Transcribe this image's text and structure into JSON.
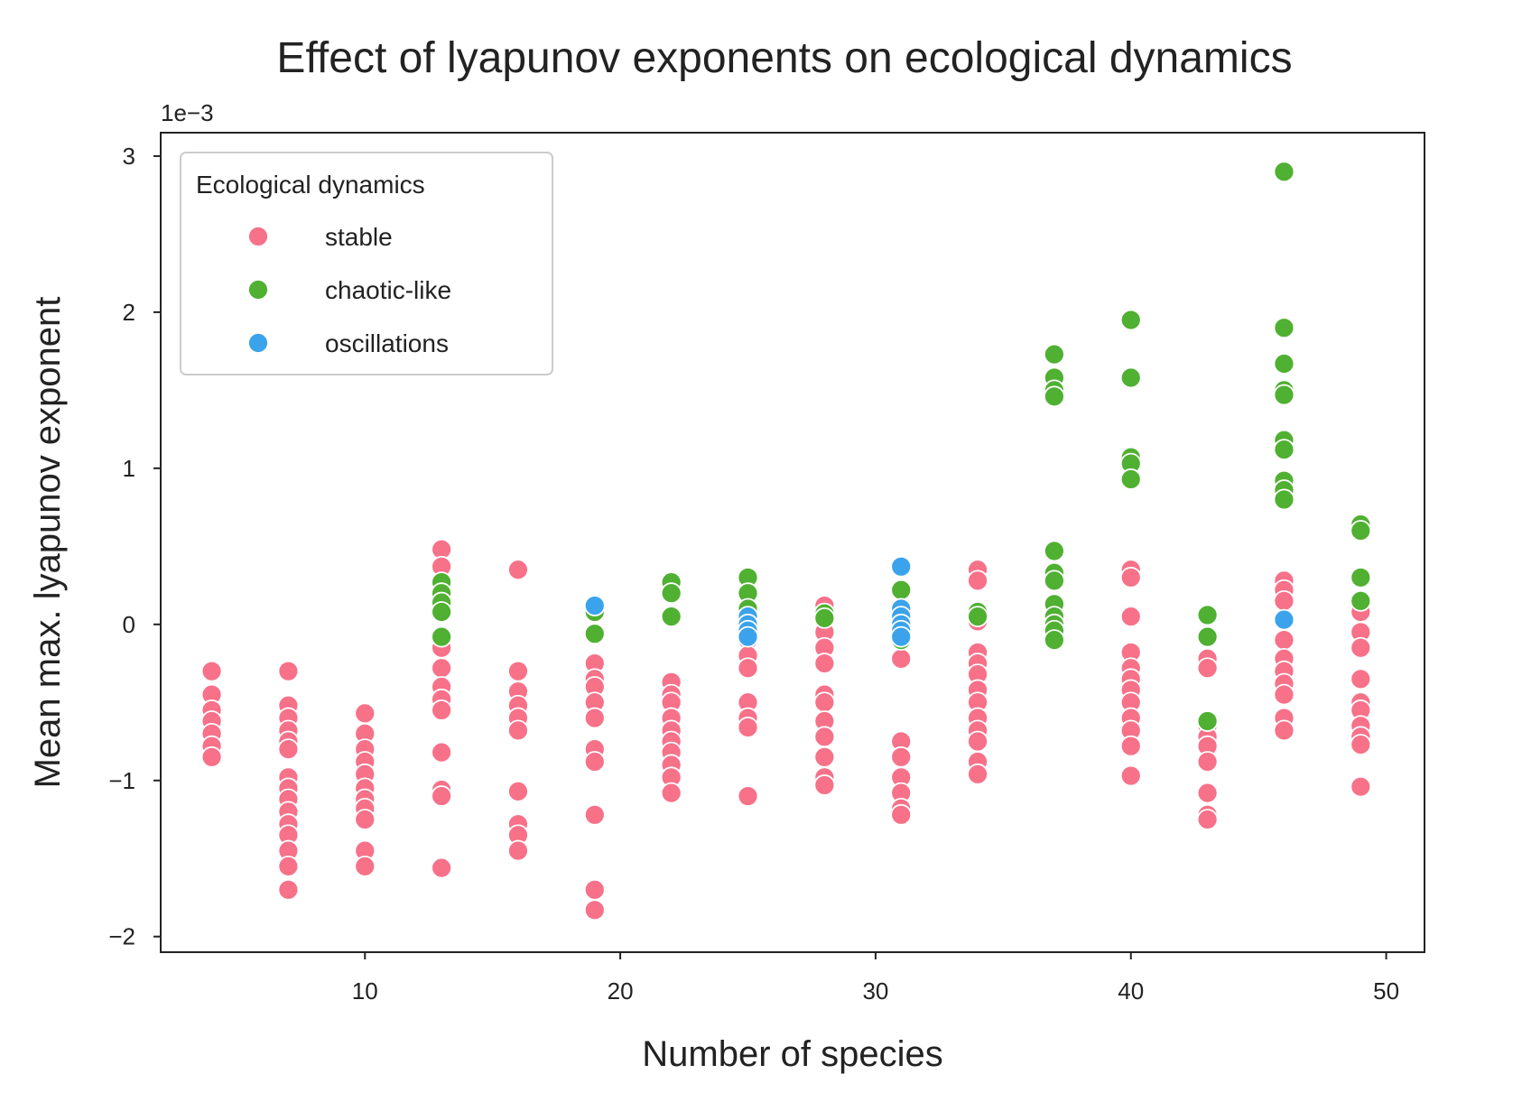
{
  "chart_data": {
    "type": "scatter",
    "title": "Effect of lyapunov exponents on ecological dynamics",
    "xlabel": "Number of species",
    "ylabel": "Mean max. lyapunov exponent",
    "y_offset_label": "1e−3",
    "xlim": [
      2,
      51.5
    ],
    "ylim": [
      -2.1,
      3.15
    ],
    "xticks": [
      10,
      20,
      30,
      40,
      50
    ],
    "yticks": [
      -2,
      -1,
      0,
      1,
      2,
      3
    ],
    "ytick_labels": [
      "−2",
      "−1",
      "0",
      "1",
      "2",
      "3"
    ],
    "grid": false,
    "legend": {
      "title": "Ecological dynamics",
      "placement": "top-left"
    },
    "series": [
      {
        "name": "stable",
        "color": "#f77189",
        "points": [
          [
            4,
            -0.3
          ],
          [
            4,
            -0.45
          ],
          [
            4,
            -0.55
          ],
          [
            4,
            -0.62
          ],
          [
            4,
            -0.7
          ],
          [
            4,
            -0.78
          ],
          [
            4,
            -0.85
          ],
          [
            7,
            -0.3
          ],
          [
            7,
            -0.52
          ],
          [
            7,
            -0.6
          ],
          [
            7,
            -0.68
          ],
          [
            7,
            -0.75
          ],
          [
            7,
            -0.8
          ],
          [
            7,
            -0.98
          ],
          [
            7,
            -1.05
          ],
          [
            7,
            -1.12
          ],
          [
            7,
            -1.2
          ],
          [
            7,
            -1.28
          ],
          [
            7,
            -1.35
          ],
          [
            7,
            -1.45
          ],
          [
            7,
            -1.55
          ],
          [
            7,
            -1.7
          ],
          [
            10,
            -0.57
          ],
          [
            10,
            -0.7
          ],
          [
            10,
            -0.8
          ],
          [
            10,
            -0.88
          ],
          [
            10,
            -0.96
          ],
          [
            10,
            -1.05
          ],
          [
            10,
            -1.12
          ],
          [
            10,
            -1.18
          ],
          [
            10,
            -1.25
          ],
          [
            10,
            -1.45
          ],
          [
            10,
            -1.55
          ],
          [
            13,
            0.48
          ],
          [
            13,
            0.37
          ],
          [
            13,
            -0.15
          ],
          [
            13,
            -0.28
          ],
          [
            13,
            -0.4
          ],
          [
            13,
            -0.48
          ],
          [
            13,
            -0.55
          ],
          [
            13,
            -0.82
          ],
          [
            13,
            -1.06
          ],
          [
            13,
            -1.1
          ],
          [
            13,
            -1.56
          ],
          [
            16,
            0.35
          ],
          [
            16,
            -0.3
          ],
          [
            16,
            -0.43
          ],
          [
            16,
            -0.52
          ],
          [
            16,
            -0.6
          ],
          [
            16,
            -0.68
          ],
          [
            16,
            -1.07
          ],
          [
            16,
            -1.28
          ],
          [
            16,
            -1.35
          ],
          [
            16,
            -1.45
          ],
          [
            19,
            -0.25
          ],
          [
            19,
            -0.35
          ],
          [
            19,
            -0.4
          ],
          [
            19,
            -0.5
          ],
          [
            19,
            -0.6
          ],
          [
            19,
            -0.8
          ],
          [
            19,
            -0.88
          ],
          [
            19,
            -1.22
          ],
          [
            19,
            -1.7
          ],
          [
            19,
            -1.83
          ],
          [
            22,
            -0.37
          ],
          [
            22,
            -0.45
          ],
          [
            22,
            -0.5
          ],
          [
            22,
            -0.6
          ],
          [
            22,
            -0.68
          ],
          [
            22,
            -0.75
          ],
          [
            22,
            -0.82
          ],
          [
            22,
            -0.9
          ],
          [
            22,
            -0.98
          ],
          [
            22,
            -1.08
          ],
          [
            25,
            -0.1
          ],
          [
            25,
            -0.2
          ],
          [
            25,
            -0.28
          ],
          [
            25,
            -0.5
          ],
          [
            25,
            -0.6
          ],
          [
            25,
            -0.66
          ],
          [
            25,
            -1.1
          ],
          [
            28,
            0.12
          ],
          [
            28,
            -0.05
          ],
          [
            28,
            -0.15
          ],
          [
            28,
            -0.25
          ],
          [
            28,
            -0.45
          ],
          [
            28,
            -0.5
          ],
          [
            28,
            -0.62
          ],
          [
            28,
            -0.72
          ],
          [
            28,
            -0.85
          ],
          [
            28,
            -0.98
          ],
          [
            28,
            -1.03
          ],
          [
            31,
            -0.22
          ],
          [
            31,
            -0.75
          ],
          [
            31,
            -0.85
          ],
          [
            31,
            -0.98
          ],
          [
            31,
            -1.08
          ],
          [
            31,
            -1.18
          ],
          [
            31,
            -1.22
          ],
          [
            34,
            0.35
          ],
          [
            34,
            0.28
          ],
          [
            34,
            0.02
          ],
          [
            34,
            -0.18
          ],
          [
            34,
            -0.25
          ],
          [
            34,
            -0.32
          ],
          [
            34,
            -0.42
          ],
          [
            34,
            -0.5
          ],
          [
            34,
            -0.6
          ],
          [
            34,
            -0.68
          ],
          [
            34,
            -0.75
          ],
          [
            34,
            -0.88
          ],
          [
            34,
            -0.96
          ],
          [
            40,
            0.35
          ],
          [
            40,
            0.3
          ],
          [
            40,
            0.05
          ],
          [
            40,
            -0.18
          ],
          [
            40,
            -0.28
          ],
          [
            40,
            -0.35
          ],
          [
            40,
            -0.42
          ],
          [
            40,
            -0.5
          ],
          [
            40,
            -0.6
          ],
          [
            40,
            -0.68
          ],
          [
            40,
            -0.78
          ],
          [
            40,
            -0.97
          ],
          [
            43,
            -0.22
          ],
          [
            43,
            -0.28
          ],
          [
            43,
            -0.65
          ],
          [
            43,
            -0.72
          ],
          [
            43,
            -0.78
          ],
          [
            43,
            -0.88
          ],
          [
            43,
            -1.08
          ],
          [
            43,
            -1.22
          ],
          [
            43,
            -1.25
          ],
          [
            46,
            0.28
          ],
          [
            46,
            0.22
          ],
          [
            46,
            0.15
          ],
          [
            46,
            -0.1
          ],
          [
            46,
            -0.22
          ],
          [
            46,
            -0.3
          ],
          [
            46,
            -0.38
          ],
          [
            46,
            -0.45
          ],
          [
            46,
            -0.6
          ],
          [
            46,
            -0.68
          ],
          [
            49,
            0.65
          ],
          [
            49,
            0.08
          ],
          [
            49,
            -0.05
          ],
          [
            49,
            -0.15
          ],
          [
            49,
            -0.35
          ],
          [
            49,
            -0.5
          ],
          [
            49,
            -0.55
          ],
          [
            49,
            -0.65
          ],
          [
            49,
            -0.72
          ],
          [
            49,
            -0.77
          ],
          [
            49,
            -1.04
          ]
        ]
      },
      {
        "name": "chaotic-like",
        "color": "#4fb031",
        "points": [
          [
            13,
            0.27
          ],
          [
            13,
            0.2
          ],
          [
            13,
            0.14
          ],
          [
            13,
            0.08
          ],
          [
            13,
            -0.08
          ],
          [
            19,
            0.08
          ],
          [
            19,
            -0.06
          ],
          [
            22,
            0.27
          ],
          [
            22,
            0.2
          ],
          [
            22,
            0.05
          ],
          [
            25,
            0.3
          ],
          [
            25,
            0.2
          ],
          [
            25,
            0.1
          ],
          [
            28,
            0.07
          ],
          [
            28,
            0.04
          ],
          [
            31,
            0.22
          ],
          [
            31,
            0.1
          ],
          [
            31,
            -0.1
          ],
          [
            34,
            0.08
          ],
          [
            34,
            0.05
          ],
          [
            37,
            1.73
          ],
          [
            37,
            1.58
          ],
          [
            37,
            1.5
          ],
          [
            37,
            1.46
          ],
          [
            37,
            0.47
          ],
          [
            37,
            0.33
          ],
          [
            37,
            0.28
          ],
          [
            37,
            0.13
          ],
          [
            37,
            0.05
          ],
          [
            37,
            0.0
          ],
          [
            37,
            -0.04
          ],
          [
            37,
            -0.1
          ],
          [
            40,
            1.95
          ],
          [
            40,
            1.58
          ],
          [
            40,
            1.07
          ],
          [
            40,
            1.03
          ],
          [
            40,
            0.93
          ],
          [
            43,
            0.06
          ],
          [
            43,
            -0.08
          ],
          [
            43,
            -0.62
          ],
          [
            46,
            2.9
          ],
          [
            46,
            1.9
          ],
          [
            46,
            1.67
          ],
          [
            46,
            1.5
          ],
          [
            46,
            1.47
          ],
          [
            46,
            1.18
          ],
          [
            46,
            1.12
          ],
          [
            46,
            0.92
          ],
          [
            46,
            0.86
          ],
          [
            46,
            0.8
          ],
          [
            49,
            0.64
          ],
          [
            49,
            0.6
          ],
          [
            49,
            0.3
          ],
          [
            49,
            0.15
          ]
        ]
      },
      {
        "name": "oscillations",
        "color": "#3ba3ec",
        "points": [
          [
            19,
            0.12
          ],
          [
            25,
            0.05
          ],
          [
            25,
            0.0
          ],
          [
            25,
            -0.04
          ],
          [
            25,
            -0.08
          ],
          [
            31,
            0.37
          ],
          [
            31,
            0.1
          ],
          [
            31,
            0.05
          ],
          [
            31,
            0.0
          ],
          [
            31,
            -0.04
          ],
          [
            31,
            -0.08
          ],
          [
            46,
            0.03
          ]
        ]
      }
    ]
  }
}
